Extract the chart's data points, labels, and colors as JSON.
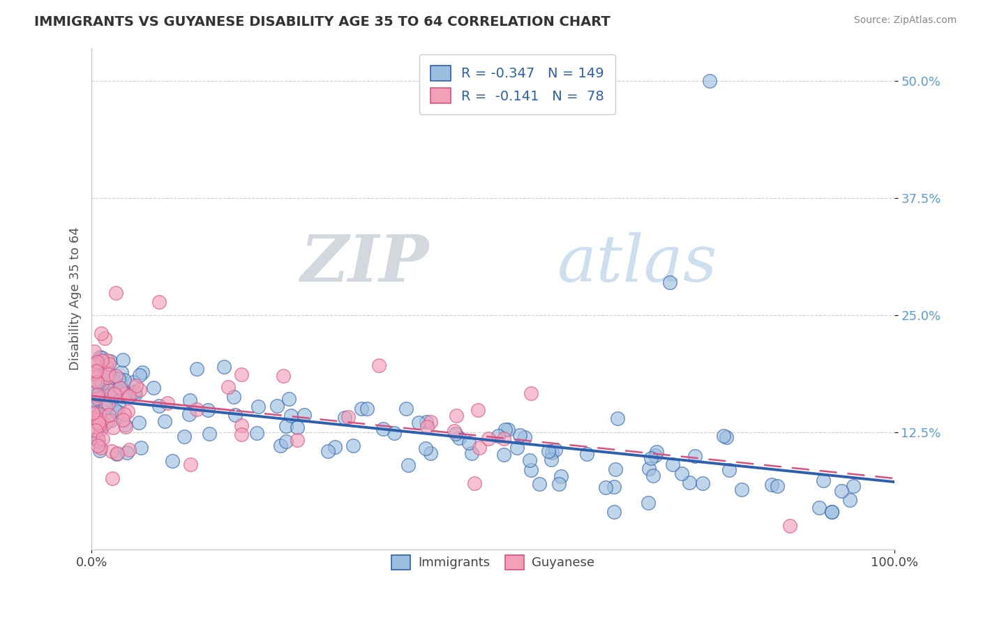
{
  "title": "IMMIGRANTS VS GUYANESE DISABILITY AGE 35 TO 64 CORRELATION CHART",
  "source": "Source: ZipAtlas.com",
  "ylabel": "Disability Age 35 to 64",
  "xlim": [
    0,
    1.0
  ],
  "ylim": [
    0,
    0.535
  ],
  "ytick_labels": [
    "12.5%",
    "25.0%",
    "37.5%",
    "50.0%"
  ],
  "ytick_positions": [
    0.125,
    0.25,
    0.375,
    0.5
  ],
  "legend_r_immigrants": "-0.347",
  "legend_n_immigrants": "149",
  "legend_r_guyanese": "-0.141",
  "legend_n_guyanese": "78",
  "immigrants_color": "#9dbfdf",
  "guyanese_color": "#f2a0b8",
  "line_immigrants_color": "#2c5fad",
  "line_guyanese_color": "#d94f80",
  "background_color": "#ffffff",
  "watermark_zip": "ZIP",
  "watermark_atlas": "atlas",
  "grid_color": "#c8c8c8",
  "tick_color": "#5b9bd5",
  "title_color": "#333333",
  "source_color": "#888888",
  "ylabel_color": "#555555"
}
